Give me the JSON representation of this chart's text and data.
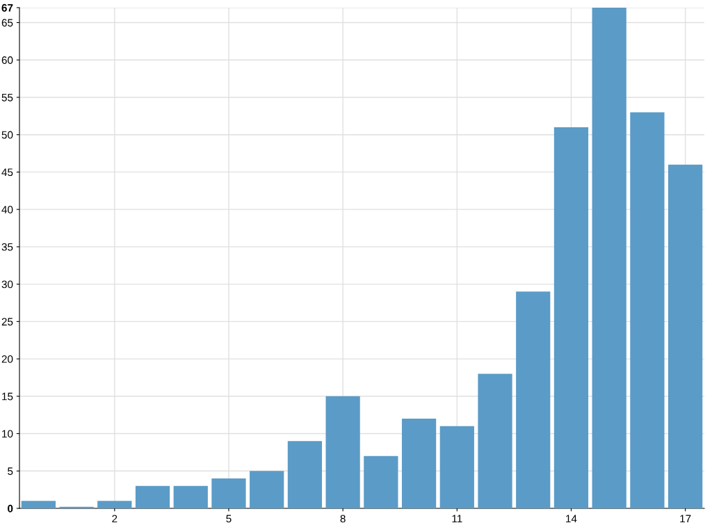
{
  "chart_data": {
    "type": "bar",
    "x": [
      0,
      1,
      2,
      3,
      4,
      5,
      6,
      7,
      8,
      9,
      10,
      11,
      12,
      13,
      14,
      15,
      16,
      17
    ],
    "values": [
      1,
      0.2,
      1,
      3,
      3,
      4,
      5,
      9,
      15,
      7,
      12,
      11,
      18,
      29,
      51,
      67,
      53,
      46
    ],
    "color": "#5b9bc7",
    "xlim": [
      -0.5,
      17.5
    ],
    "xticks": [
      2,
      5,
      8,
      11,
      14,
      17
    ],
    "ylim": [
      0,
      67
    ],
    "yticks": [
      0,
      5,
      10,
      15,
      20,
      25,
      30,
      35,
      40,
      45,
      50,
      55,
      60,
      65,
      67
    ],
    "grid": true
  }
}
